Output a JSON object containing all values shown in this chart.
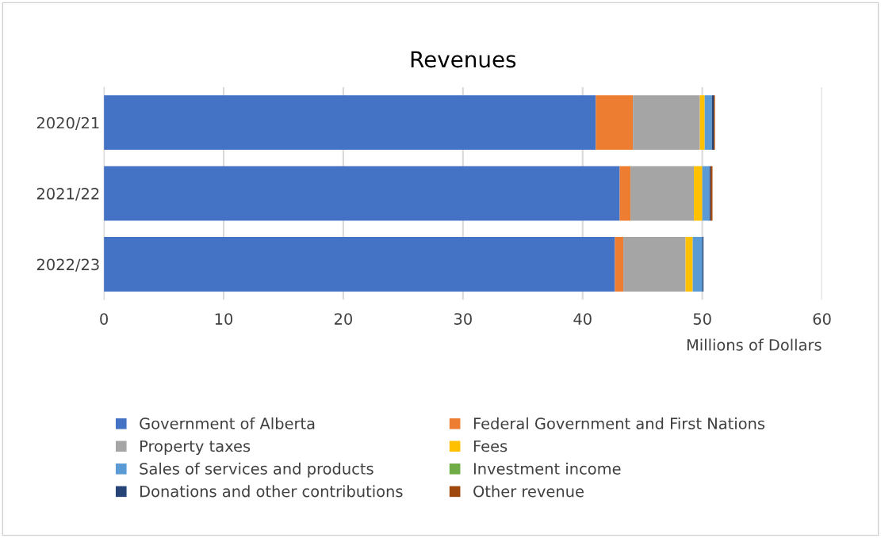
{
  "chart_data": {
    "type": "bar",
    "orientation": "horizontal",
    "stacked": true,
    "title": "Revenues",
    "xlabel": "Millions of Dollars",
    "categories": [
      "2020/21",
      "2021/22",
      "2022/23"
    ],
    "series": [
      {
        "name": "Government of Alberta",
        "color": "#4472c4",
        "values": [
          41.1,
          43.1,
          42.7
        ]
      },
      {
        "name": "Federal Government and First Nations",
        "color": "#ed7d31",
        "values": [
          3.1,
          0.9,
          0.7
        ]
      },
      {
        "name": "Property taxes",
        "color": "#a5a5a5",
        "values": [
          5.6,
          5.3,
          5.2
        ]
      },
      {
        "name": "Fees",
        "color": "#ffc000",
        "values": [
          0.4,
          0.7,
          0.6
        ]
      },
      {
        "name": "Sales of services and products",
        "color": "#5b9bd5",
        "values": [
          0.6,
          0.6,
          0.8
        ]
      },
      {
        "name": "Investment income",
        "color": "#70ad47",
        "values": [
          0,
          0,
          0
        ]
      },
      {
        "name": "Donations and other contributions",
        "color": "#264478",
        "values": [
          0.15,
          0.1,
          0.1
        ]
      },
      {
        "name": "Other revenue",
        "color": "#9e480e",
        "values": [
          0.1,
          0.15,
          0
        ]
      }
    ],
    "xlim": [
      0,
      60
    ],
    "xticks": [
      0,
      10,
      20,
      30,
      40,
      50,
      60
    ],
    "grid": "x",
    "legend": "bottom"
  }
}
